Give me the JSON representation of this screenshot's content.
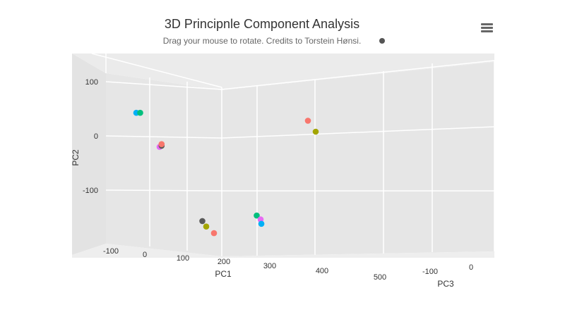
{
  "chart_data": {
    "type": "scatter",
    "title": "3D Principnle Component Analysis",
    "subtitle": "Drag your mouse to rotate. Credits to Torstein Hønsi.",
    "xlabel": "PC1",
    "ylabel": "PC2",
    "zlabel": "PC3",
    "x_ticks": [
      "-100",
      "0",
      "100",
      "200",
      "300",
      "400",
      "500"
    ],
    "y_ticks": [
      "100",
      "0",
      "-100"
    ],
    "z_ticks": [
      "-100",
      "0"
    ],
    "grid": true,
    "points": [
      {
        "pc1": -20,
        "pc2": 42,
        "pc3": -60,
        "color": "#00b0f6"
      },
      {
        "pc1": -10,
        "pc2": 42,
        "pc3": -60,
        "color": "#00bf7d"
      },
      {
        "pc1": 40,
        "pc2": -20,
        "pc3": -60,
        "color": "#e76bf3"
      },
      {
        "pc1": 45,
        "pc2": -18,
        "pc3": -60,
        "color": "#595959"
      },
      {
        "pc1": 45,
        "pc2": -15,
        "pc3": -60,
        "color": "#f8766d"
      },
      {
        "pc1": 400,
        "pc2": 20,
        "pc3": -30,
        "color": "#f8766d"
      },
      {
        "pc1": 420,
        "pc2": 0,
        "pc3": -30,
        "color": "#a3a500"
      },
      {
        "pc1": 150,
        "pc2": -155,
        "pc3": -60,
        "color": "#595959"
      },
      {
        "pc1": 160,
        "pc2": -165,
        "pc3": -60,
        "color": "#a3a500"
      },
      {
        "pc1": 180,
        "pc2": -177,
        "pc3": -60,
        "color": "#f8766d"
      },
      {
        "pc1": 290,
        "pc2": -145,
        "pc3": -60,
        "color": "#00bf7d"
      },
      {
        "pc1": 300,
        "pc2": -152,
        "pc3": -60,
        "color": "#e76bf3"
      },
      {
        "pc1": 302,
        "pc2": -160,
        "pc3": -60,
        "color": "#00b0f6"
      }
    ],
    "legend_marker_color": "#555555"
  },
  "menu": {
    "icon": "hamburger-menu-icon"
  }
}
